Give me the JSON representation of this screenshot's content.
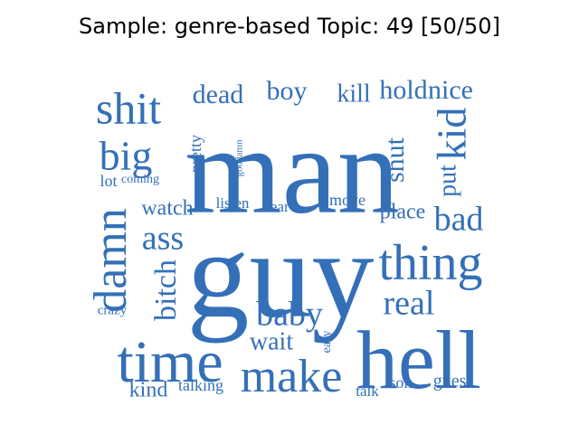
{
  "title": "Sample: genre-based Topic: 49 [50/50]",
  "word_color": "#3470b8",
  "words": [
    {
      "text": "man",
      "orientation": "horizontal"
    },
    {
      "text": "guy",
      "orientation": "horizontal"
    },
    {
      "text": "hell",
      "orientation": "horizontal"
    },
    {
      "text": "time",
      "orientation": "horizontal"
    },
    {
      "text": "make",
      "orientation": "horizontal"
    },
    {
      "text": "thing",
      "orientation": "horizontal"
    },
    {
      "text": "shit",
      "orientation": "horizontal"
    },
    {
      "text": "big",
      "orientation": "horizontal"
    },
    {
      "text": "kid",
      "orientation": "vertical"
    },
    {
      "text": "damn",
      "orientation": "vertical"
    },
    {
      "text": "ass",
      "orientation": "horizontal"
    },
    {
      "text": "baby",
      "orientation": "horizontal"
    },
    {
      "text": "real",
      "orientation": "horizontal"
    },
    {
      "text": "bad",
      "orientation": "horizontal"
    },
    {
      "text": "bitch",
      "orientation": "vertical"
    },
    {
      "text": "dead",
      "orientation": "horizontal"
    },
    {
      "text": "boy",
      "orientation": "horizontal"
    },
    {
      "text": "kill",
      "orientation": "horizontal"
    },
    {
      "text": "hold",
      "orientation": "horizontal"
    },
    {
      "text": "nice",
      "orientation": "horizontal"
    },
    {
      "text": "shut",
      "orientation": "vertical"
    },
    {
      "text": "put",
      "orientation": "vertical"
    },
    {
      "text": "wait",
      "orientation": "horizontal"
    },
    {
      "text": "watch",
      "orientation": "horizontal"
    },
    {
      "text": "place",
      "orientation": "horizontal"
    },
    {
      "text": "kind",
      "orientation": "horizontal"
    },
    {
      "text": "pretty",
      "orientation": "vertical"
    },
    {
      "text": "lot",
      "orientation": "horizontal"
    },
    {
      "text": "move",
      "orientation": "horizontal"
    },
    {
      "text": "listen",
      "orientation": "horizontal"
    },
    {
      "text": "hear",
      "orientation": "horizontal"
    },
    {
      "text": "guess",
      "orientation": "horizontal"
    },
    {
      "text": "son",
      "orientation": "horizontal"
    },
    {
      "text": "talking",
      "orientation": "horizontal"
    },
    {
      "text": "talk",
      "orientation": "horizontal"
    },
    {
      "text": "coming",
      "orientation": "horizontal"
    },
    {
      "text": "crazy",
      "orientation": "horizontal"
    },
    {
      "text": "easy",
      "orientation": "vertical"
    },
    {
      "text": "goddamn",
      "orientation": "vertical"
    }
  ]
}
